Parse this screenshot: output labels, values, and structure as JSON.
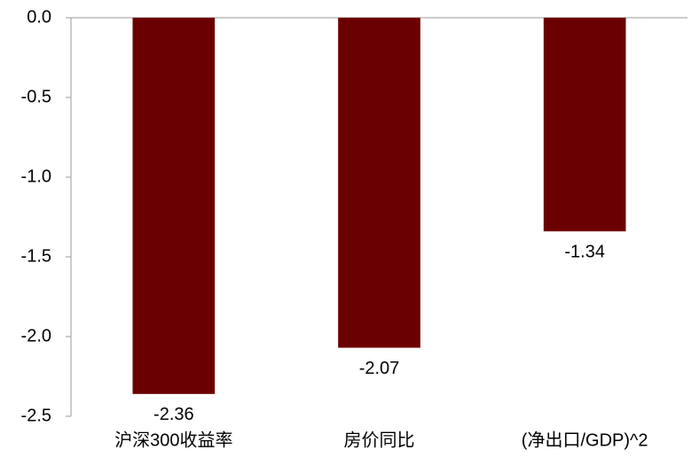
{
  "chart_data": {
    "type": "bar",
    "categories": [
      "沪深300收益率",
      "房价同比",
      "(净出口/GDP)^2"
    ],
    "values": [
      -2.36,
      -2.07,
      -1.34
    ],
    "color": "#6b0000",
    "ylim": [
      -2.5,
      0
    ],
    "yticks": [
      {
        "value": 0,
        "label": "0.0"
      },
      -0.5,
      {
        "value": -1,
        "label": "-1.0"
      },
      -1.5,
      {
        "value": -2,
        "label": "-2.0"
      },
      -2.5
    ],
    "grid": false
  }
}
